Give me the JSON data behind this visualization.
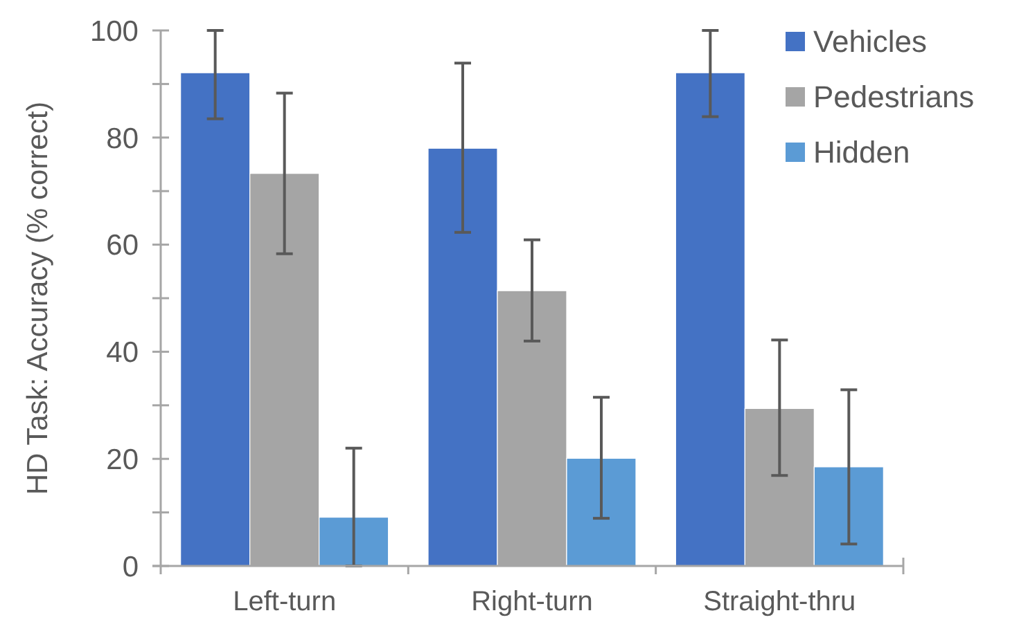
{
  "chart_data": {
    "type": "bar",
    "ylabel": "HD Task: Accuracy (% correct)",
    "categories": [
      "Left-turn",
      "Right-turn",
      "Straight-thru"
    ],
    "series": [
      {
        "name": "Vehicles",
        "color": "#4472c4",
        "values": [
          92.1,
          78.0,
          92.1
        ],
        "errors": [
          [
            83.5,
            100
          ],
          [
            62.3,
            93.9
          ],
          [
            83.9,
            100
          ]
        ]
      },
      {
        "name": "Pedestrians",
        "color": "#a5a5a5",
        "values": [
          73.3,
          51.4,
          29.4
        ],
        "errors": [
          [
            58.3,
            88.3
          ],
          [
            42.0,
            60.9
          ],
          [
            16.9,
            42.2
          ]
        ]
      },
      {
        "name": "Hidden",
        "color": "#5b9bd5",
        "values": [
          9.1,
          20.1,
          18.5
        ],
        "errors": [
          [
            0,
            22.0
          ],
          [
            8.9,
            31.5
          ],
          [
            4.1,
            32.9
          ]
        ]
      }
    ],
    "ylim": [
      0,
      100
    ],
    "yticks": [
      0,
      {
        "value": 10,
        "label": null
      },
      20,
      {
        "value": 30,
        "label": null
      },
      40,
      {
        "value": 50,
        "label": null
      },
      60,
      {
        "value": 70,
        "label": null
      },
      80,
      {
        "value": 90,
        "label": null
      },
      100
    ],
    "grid": false,
    "legend": "top right"
  }
}
